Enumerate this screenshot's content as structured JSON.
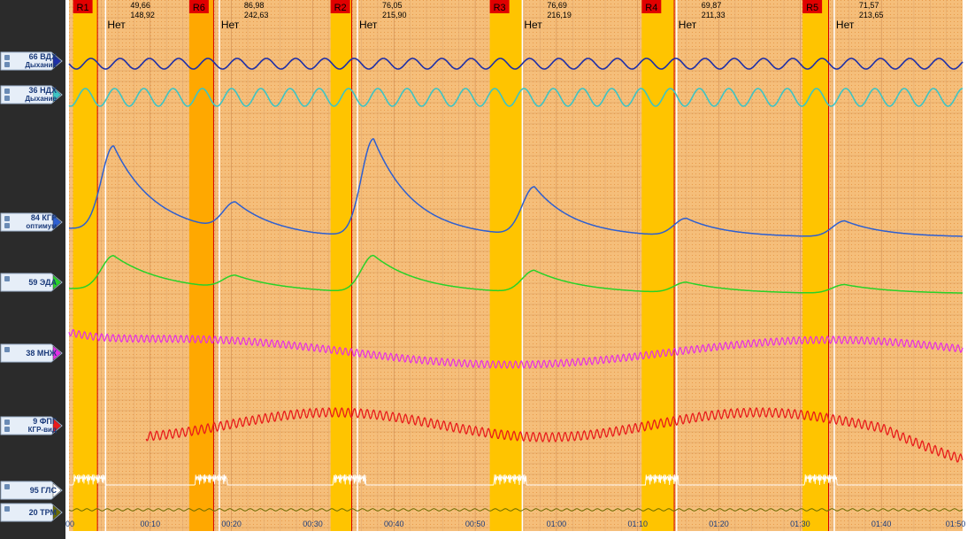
{
  "channels": [
    {
      "id": "vdh",
      "number": "66",
      "name": "ВДХ",
      "subtitle": "Дыхание",
      "color": "#1e2fa8"
    },
    {
      "id": "ndh",
      "number": "36",
      "name": "НДХ",
      "subtitle": "Дыхание",
      "color": "#3ec4c4"
    },
    {
      "id": "kgr",
      "number": "84",
      "name": "КГР",
      "subtitle": "оптимум",
      "color": "#2e5fd0"
    },
    {
      "id": "eda",
      "number": "59",
      "name": "ЭДА",
      "subtitle": "",
      "color": "#28d228"
    },
    {
      "id": "mnzh",
      "number": "38",
      "name": "МНЖ",
      "subtitle": "",
      "color": "#e62de6"
    },
    {
      "id": "fpg",
      "number": "9",
      "name": "ФПГ",
      "subtitle": "КГР-вид",
      "color": "#e81b1b"
    },
    {
      "id": "gls",
      "number": "95",
      "name": "ГЛС",
      "subtitle": "",
      "color": "#ffffff"
    },
    {
      "id": "trm",
      "number": "20",
      "name": "ТРМ",
      "subtitle": "",
      "color": "#6b6b00"
    }
  ],
  "stimuli": [
    {
      "label": "R1",
      "answer": "",
      "value1": "",
      "value2": ""
    },
    {
      "label": "R6",
      "answer": "Нет",
      "value1": "49,66",
      "value2": "148,92"
    },
    {
      "label": "R2",
      "answer": "Нет",
      "value1": "86,98",
      "value2": "242,63"
    },
    {
      "label": "R3",
      "answer": "Нет",
      "value1": "76,05",
      "value2": "215,90"
    },
    {
      "label": "R4",
      "answer": "Нет",
      "value1": "76,69",
      "value2": "216,19"
    },
    {
      "label": "R5",
      "answer": "Нет",
      "value1": "69,87",
      "value2": "211,33"
    },
    {
      "label": "",
      "answer": "Нет",
      "value1": "71,57",
      "value2": "213,65"
    }
  ],
  "time_axis": [
    "00",
    "00:10",
    "00:20",
    "00:30",
    "00:40",
    "00:50",
    "01:00",
    "01:10",
    "01:20",
    "01:30",
    "01:40",
    "01:50"
  ],
  "colors": {
    "background": "#f5be7a",
    "stimulus_band": "#ffc400",
    "marker_bg": "#e00000",
    "panel": "#2b2b2b"
  }
}
